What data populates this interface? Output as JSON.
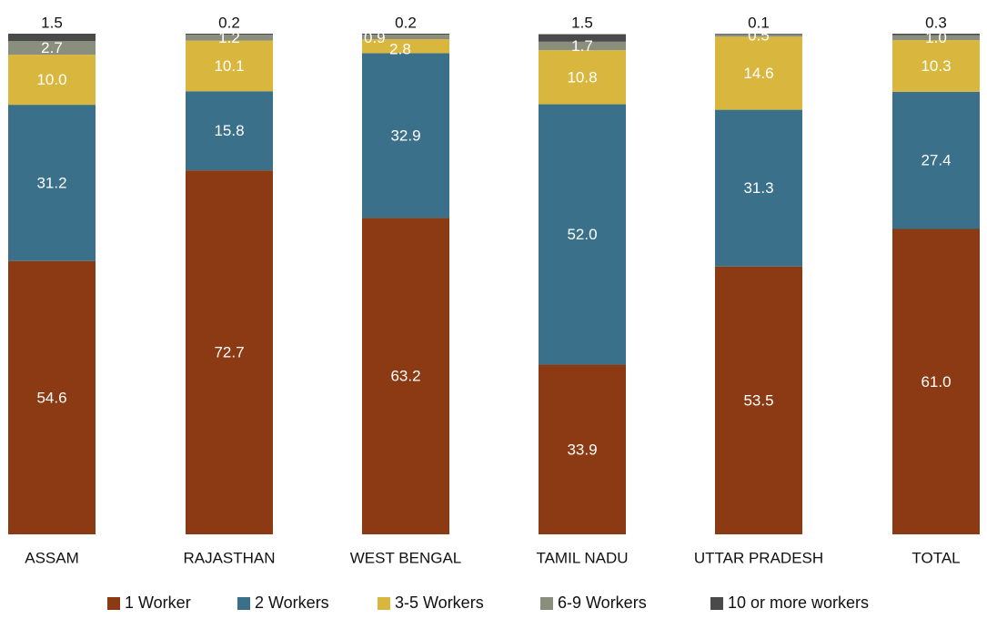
{
  "chart_data": {
    "type": "bar",
    "stacked": true,
    "categories": [
      "ASSAM",
      "RAJASTHAN",
      "WEST BENGAL",
      "TAMIL NADU",
      "UTTAR PRADESH",
      "TOTAL"
    ],
    "series": [
      {
        "name": "1 Worker",
        "color": "#8B3A14",
        "values": [
          54.6,
          72.7,
          63.2,
          33.9,
          53.5,
          61.0
        ]
      },
      {
        "name": "2 Workers",
        "color": "#3A7089",
        "values": [
          31.2,
          15.8,
          32.9,
          52.0,
          31.3,
          27.4
        ]
      },
      {
        "name": "3-5 Workers",
        "color": "#D9B73F",
        "values": [
          10.0,
          10.1,
          2.8,
          10.8,
          14.6,
          10.3
        ]
      },
      {
        "name": "6-9 Workers",
        "color": "#8A8F7D",
        "values": [
          2.7,
          1.2,
          0.9,
          1.7,
          0.5,
          1.0
        ]
      },
      {
        "name": "10 or more workers",
        "color": "#4A4A4A",
        "values": [
          1.5,
          0.2,
          0.2,
          1.5,
          0.1,
          0.3
        ]
      }
    ],
    "data_labels": [
      [
        "54.6",
        "72.7",
        "63.2",
        "33.9",
        "53.5",
        "61.0"
      ],
      [
        "31.2",
        "15.8",
        "32.9",
        "52.0",
        "31.3",
        "27.4"
      ],
      [
        "10.0",
        "10.1",
        "2.8",
        "10.8",
        "14.6",
        "10.3"
      ],
      [
        "2.7",
        "1.2",
        "0.9",
        "1.7",
        "0.5",
        "1.0"
      ],
      [
        "1.5",
        "0.2",
        "0.2",
        "1.5",
        "0.1",
        "0.3"
      ]
    ],
    "ylim": [
      0,
      100
    ],
    "grid": false,
    "legend_position": "bottom"
  }
}
